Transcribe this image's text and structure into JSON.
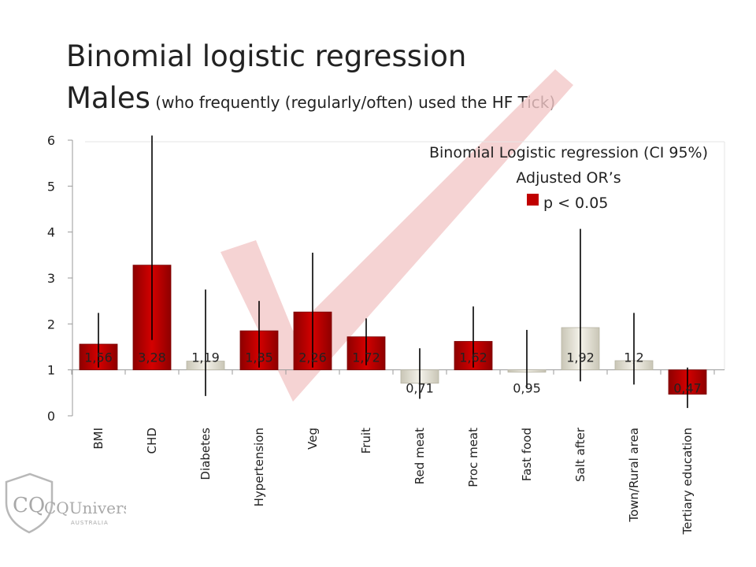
{
  "slide": {
    "title_line1": "Binomial logistic regression",
    "title_line2_main": "Males",
    "title_line2_sub": " (who frequently (regularly/often) used the HF Tick)"
  },
  "logo": {
    "text": "CQUniversity",
    "subtext": "AUSTRALIA"
  },
  "chart_data": {
    "type": "bar",
    "title_lines": [
      "Binomial Logistic regression (CI 95%)",
      "Adjusted OR’s"
    ],
    "legend_label": "p < 0.05",
    "legend_placement": "top-right",
    "ylim": [
      0,
      6
    ],
    "yticks": [
      0,
      1,
      2,
      3,
      4,
      5,
      6
    ],
    "baseline": 1,
    "grid": false,
    "categories": [
      "BMI",
      "CHD",
      "Diabetes",
      "Hypertension",
      "Veg",
      "Fruit",
      "Red meat",
      "Proc meat",
      "Fast food",
      "Salt after",
      "Town/Rural area",
      "Tertiary education"
    ],
    "values": [
      1.56,
      3.28,
      1.19,
      1.85,
      2.26,
      1.72,
      0.71,
      1.62,
      0.95,
      1.92,
      1.2,
      0.47
    ],
    "value_labels": [
      "1,56",
      "3,28",
      "1,19",
      "1,85",
      "2,26",
      "1,72",
      "0,71",
      "1,62",
      "0,95",
      "1,92",
      "1,2",
      "0,47"
    ],
    "significant": [
      true,
      true,
      false,
      true,
      true,
      true,
      false,
      true,
      false,
      false,
      false,
      true
    ],
    "ci_lower": [
      1.05,
      1.65,
      0.43,
      1.05,
      1.05,
      1.1,
      0.37,
      1.05,
      0.6,
      0.75,
      0.68,
      0.17
    ],
    "ci_upper": [
      2.24,
      6.1,
      2.75,
      2.5,
      3.55,
      2.12,
      1.47,
      2.38,
      1.87,
      4.07,
      2.24,
      1.05
    ],
    "colors": {
      "significant": "#c00000",
      "not_significant": "#e8e6dc"
    }
  }
}
